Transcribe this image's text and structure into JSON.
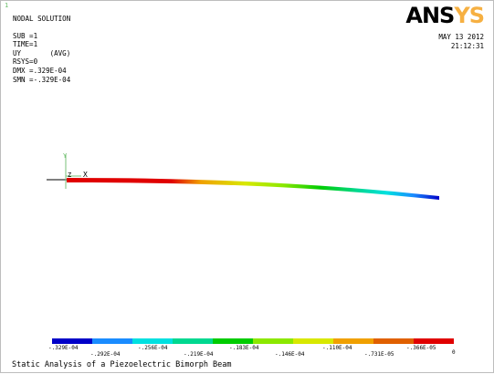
{
  "corner_index": "1",
  "info": {
    "title": "NODAL SOLUTION",
    "lines": [
      "SUB =1",
      "TIME=1",
      "UY       (AVG)",
      "RSYS=0",
      "DMX =.329E-04",
      "SMN =-.329E-04"
    ]
  },
  "logo": {
    "an": "ANS",
    "sys": "YS"
  },
  "datetime": {
    "date": "MAY 13 2012",
    "time": "21:12:31"
  },
  "axes": {
    "y": "Y",
    "z": "Z",
    "x": "X"
  },
  "legend": {
    "colors": [
      "#0000c8",
      "#1a8cff",
      "#00e0e0",
      "#00d890",
      "#00cc00",
      "#8ce800",
      "#d8e800",
      "#f0a000",
      "#e06000",
      "#e00000"
    ],
    "lower_labels": [
      "-.329E-04",
      "-.256E-04",
      "-.183E-04",
      "-.110E-04",
      "-.366E-05"
    ],
    "upper_labels": [
      "-.292E-04",
      "-.219E-04",
      "-.146E-04",
      "-.731E-05",
      "0"
    ]
  },
  "caption": "Static Analysis of a Piezoelectric Bimorph Beam"
}
